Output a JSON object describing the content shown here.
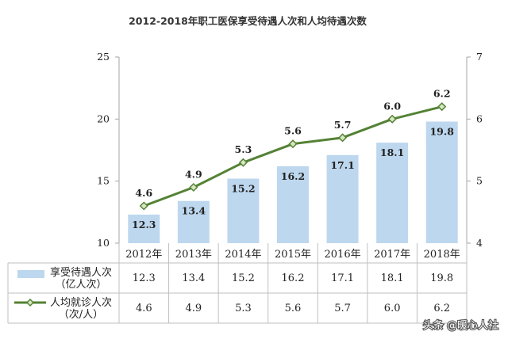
{
  "chart_data": {
    "type": "bar",
    "title": "2012-2018年职工医保享受待遇人次和人均待遇次数",
    "categories": [
      "2012年",
      "2013年",
      "2014年",
      "2015年",
      "2016年",
      "2017年",
      "2018年"
    ],
    "series": [
      {
        "name": "享受待遇人次（亿人次）",
        "type": "bar",
        "axis": "left",
        "values": [
          12.3,
          13.4,
          15.2,
          16.2,
          17.1,
          18.1,
          19.8
        ],
        "color": "#bdd7ee"
      },
      {
        "name": "人均就诊人次（次/人）",
        "type": "line",
        "axis": "right",
        "values": [
          4.6,
          4.9,
          5.3,
          5.6,
          5.7,
          6.0,
          6.2
        ],
        "color": "#548235",
        "marker_fill": "#d9e8c4"
      }
    ],
    "series_table_labels": [
      [
        "享受待遇人次",
        "（亿人次）"
      ],
      [
        "人均就诊人次",
        "（次/人）"
      ]
    ],
    "y_left": {
      "ylim": [
        10,
        25
      ],
      "ticks": [
        "10",
        "15",
        "20",
        "25"
      ]
    },
    "y_right": {
      "ylim": [
        4,
        7
      ],
      "ticks": [
        "4",
        "5",
        "6",
        "7"
      ]
    },
    "bar_value_labels": [
      "12.3",
      "13.4",
      "15.2",
      "16.2",
      "17.1",
      "18.1",
      "19.8"
    ],
    "line_value_labels": [
      "4.6",
      "4.9",
      "5.3",
      "5.6",
      "5.7",
      "6.0",
      "6.2"
    ],
    "legend": "data-table"
  },
  "watermark": "头条 @暖心人社"
}
